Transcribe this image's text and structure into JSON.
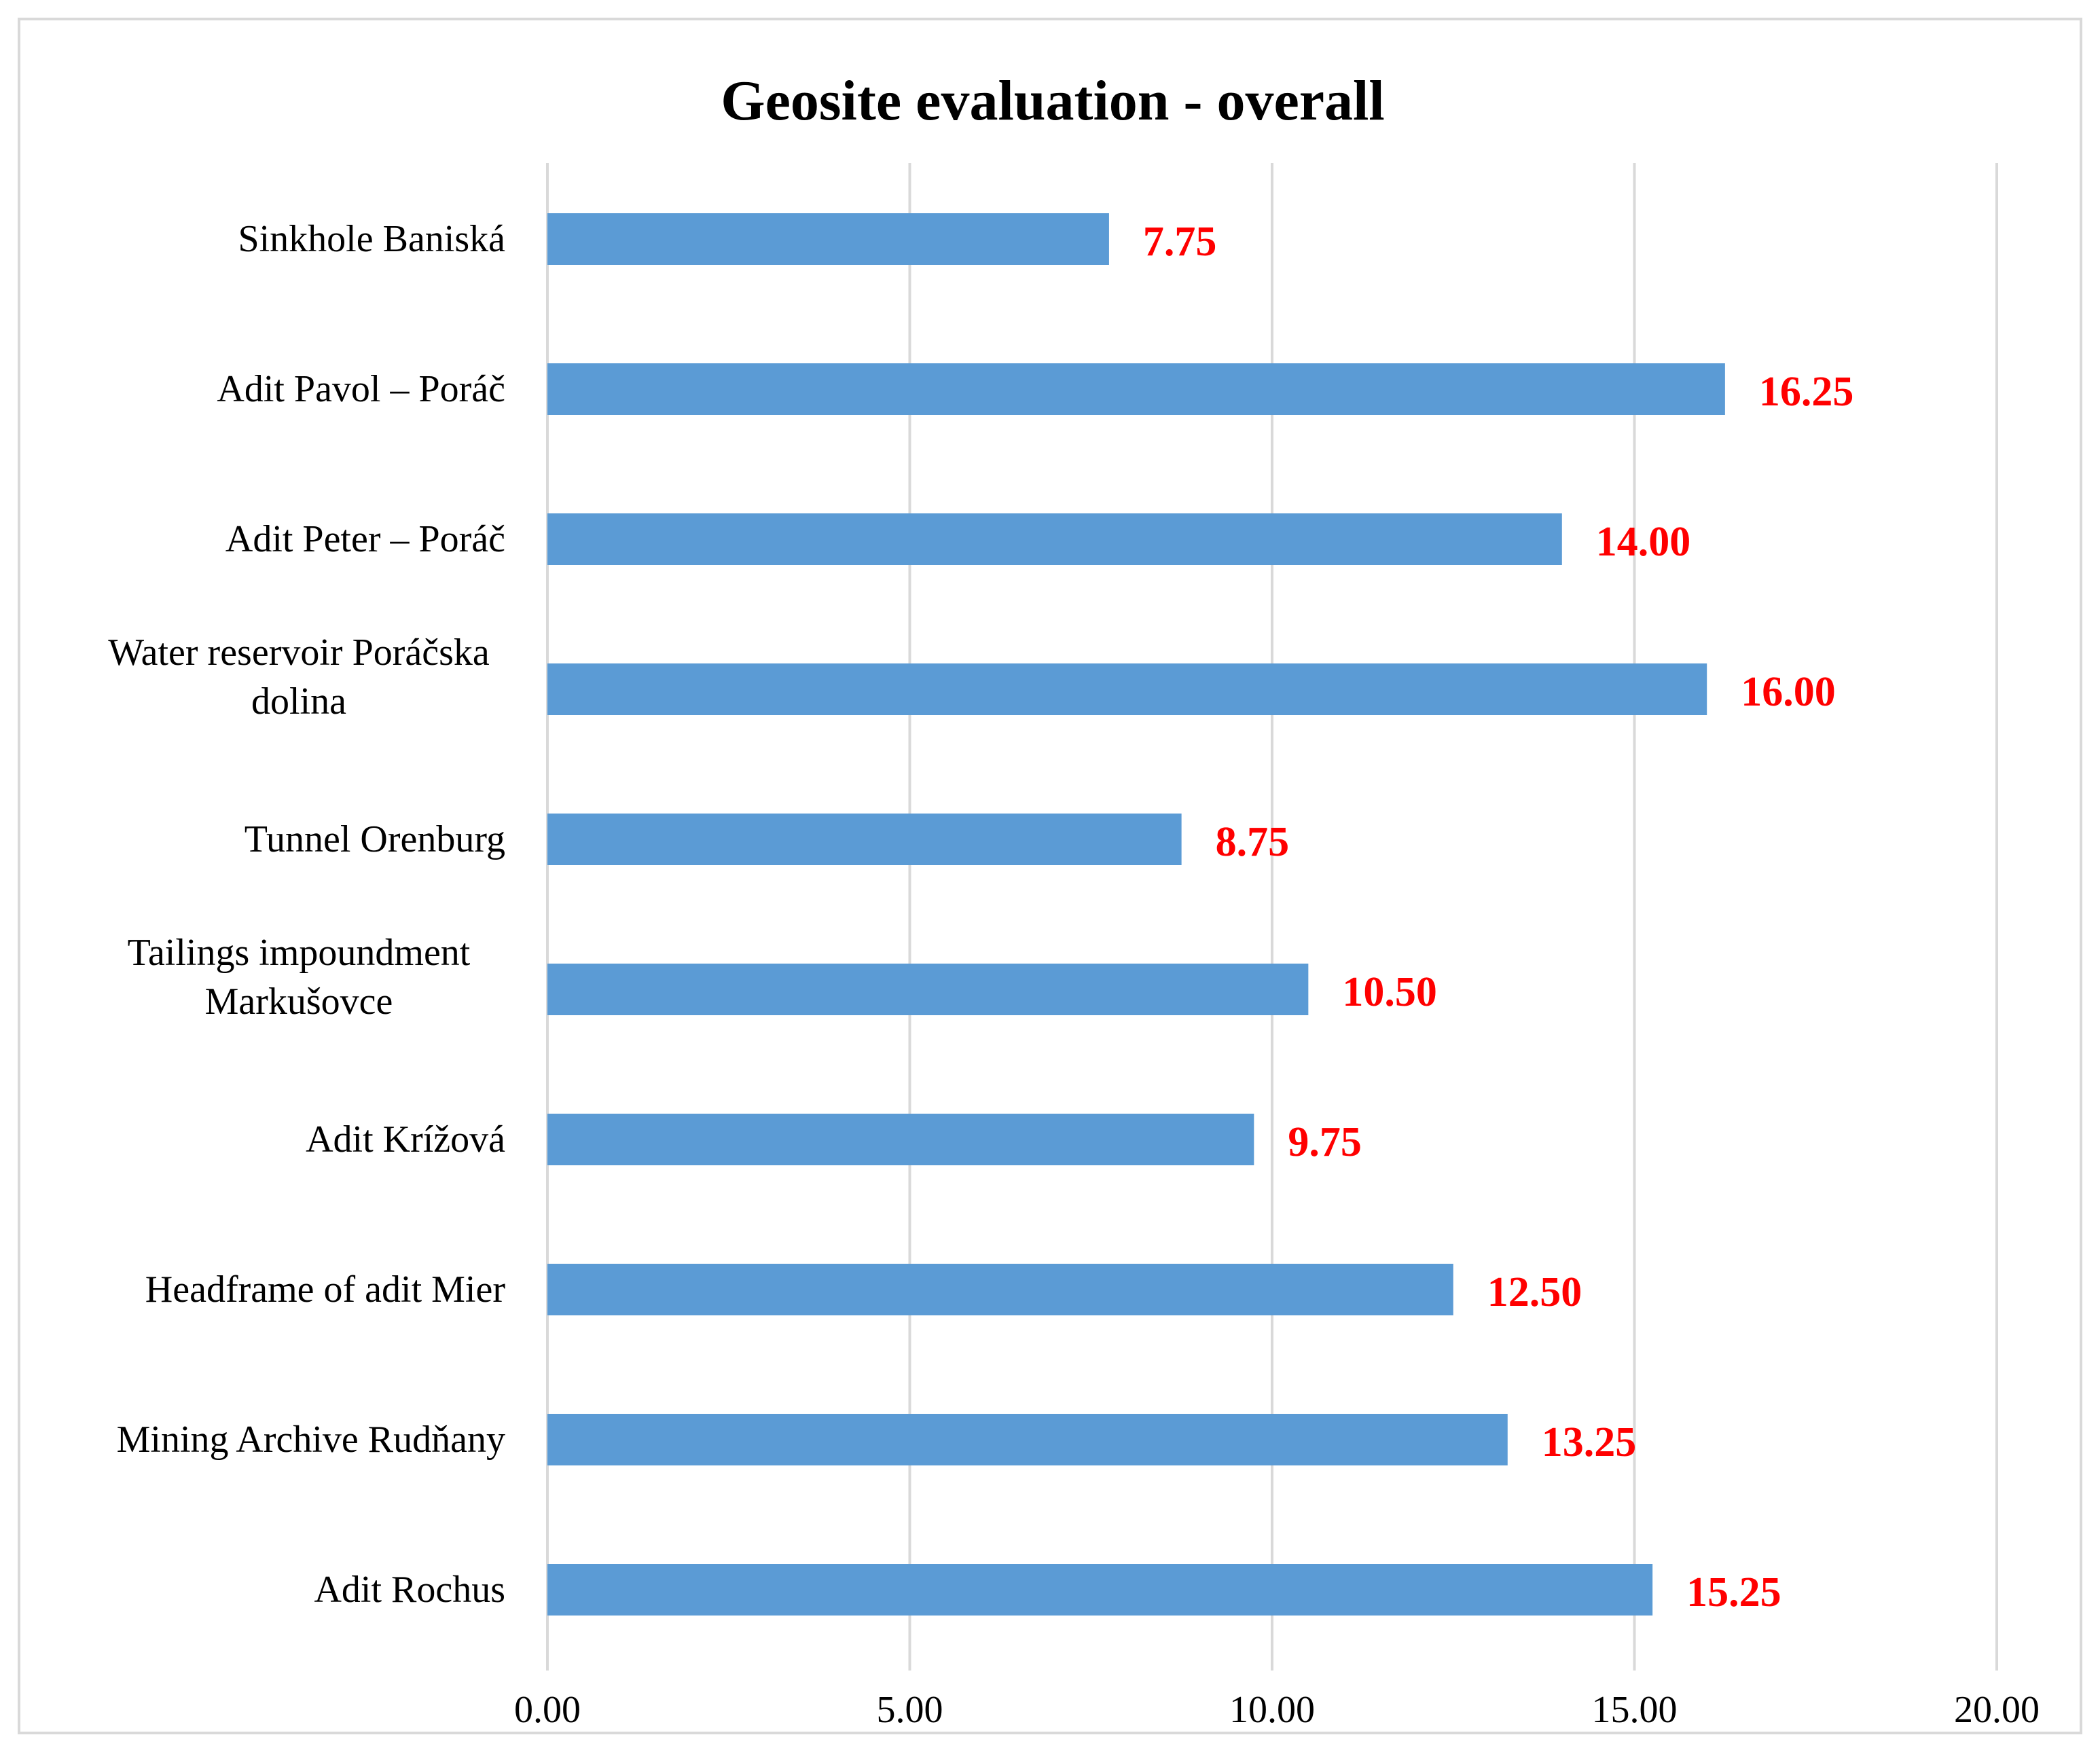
{
  "chart_data": {
    "type": "bar",
    "orientation": "horizontal",
    "title": "Geosite evaluation - overall",
    "xlabel": "",
    "ylabel": "",
    "categories": [
      [
        "Sinkhole Baniská"
      ],
      [
        "Adit Pavol – Poráč"
      ],
      [
        "Adit Peter – Poráč"
      ],
      [
        "Water reservoir Poráčska",
        "dolina"
      ],
      [
        "Tunnel Orenburg"
      ],
      [
        "Tailings impoundment",
        "Markušovce"
      ],
      [
        "Adit Krížová"
      ],
      [
        "Headframe of adit Mier"
      ],
      [
        "Mining Archive Rudňany"
      ],
      [
        "Adit Rochus"
      ]
    ],
    "values": [
      7.75,
      16.25,
      14.0,
      16.0,
      8.75,
      10.5,
      9.75,
      12.5,
      13.25,
      15.25
    ],
    "value_labels": [
      "7.75",
      "16.25",
      "14.00",
      "16.00",
      "8.75",
      "10.50",
      "9.75",
      "12.50",
      "13.25",
      "15.25"
    ],
    "x_ticks": [
      0,
      5,
      10,
      15,
      20
    ],
    "x_tick_labels": [
      "0.00",
      "5.00",
      "10.00",
      "15.00",
      "20.00"
    ],
    "xlim": [
      0,
      20
    ],
    "grid": "vertical",
    "legend": "none",
    "colors": {
      "bar": "#5b9bd5",
      "value_label": "#ff0000",
      "gridline": "#d9d9d9",
      "text": "#000000"
    }
  }
}
